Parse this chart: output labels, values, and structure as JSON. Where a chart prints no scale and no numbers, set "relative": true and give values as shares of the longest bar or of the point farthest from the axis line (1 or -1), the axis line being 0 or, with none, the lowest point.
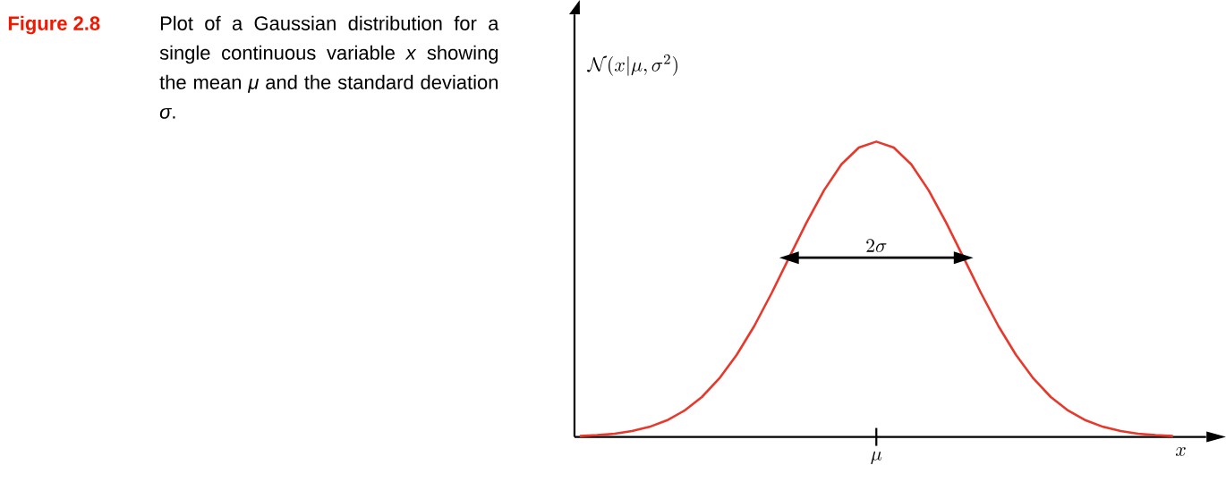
{
  "chart_data": {
    "type": "line",
    "relative": true,
    "categories": [
      null,
      null,
      null,
      null,
      null,
      null,
      null,
      null,
      null,
      null,
      null,
      null,
      null,
      null,
      null,
      null,
      null,
      null,
      null,
      null,
      null,
      null,
      null,
      null,
      null,
      null,
      null,
      null,
      null,
      null,
      null,
      null,
      null,
      null,
      null
    ],
    "xlabel": "x",
    "ylabel": "\\mathcal{N}(x|\\mu,\\sigma^2)",
    "series": [
      {
        "color": "#e8382b",
        "values": [
          0.003,
          0.006,
          0.011,
          0.02,
          0.034,
          0.056,
          0.089,
          0.135,
          0.198,
          0.278,
          0.375,
          0.487,
          0.607,
          0.726,
          0.835,
          0.923,
          0.98,
          1,
          0.98,
          0.923,
          0.835,
          0.726,
          0.607,
          0.487,
          0.375,
          0.278,
          0.198,
          0.135,
          0.089,
          0.056,
          0.034,
          0.02,
          0.011,
          0.006,
          0.003
        ]
      },
      {
        "color": "#000000",
        "values": [
          null,
          null,
          null,
          null,
          null,
          null,
          null,
          null,
          null,
          null,
          null,
          null,
          0.607,
          0.607,
          0.607,
          0.607,
          0.607,
          0.607,
          0.607,
          0.607,
          0.607,
          0.607,
          0.607,
          null,
          null,
          null,
          null,
          null,
          null,
          null,
          null,
          null,
          null,
          null,
          null
        ]
      }
    ],
    "annotations": [
      "**Figure 2.8**",
      "Plot of a Gaussian distribution for a single continuous variable *x* showing the mean *μ* and the standard deviation *σ*.",
      {
        "text": "2\\sigma",
        "y": 0.607
      },
      "\\mu"
    ]
  }
}
